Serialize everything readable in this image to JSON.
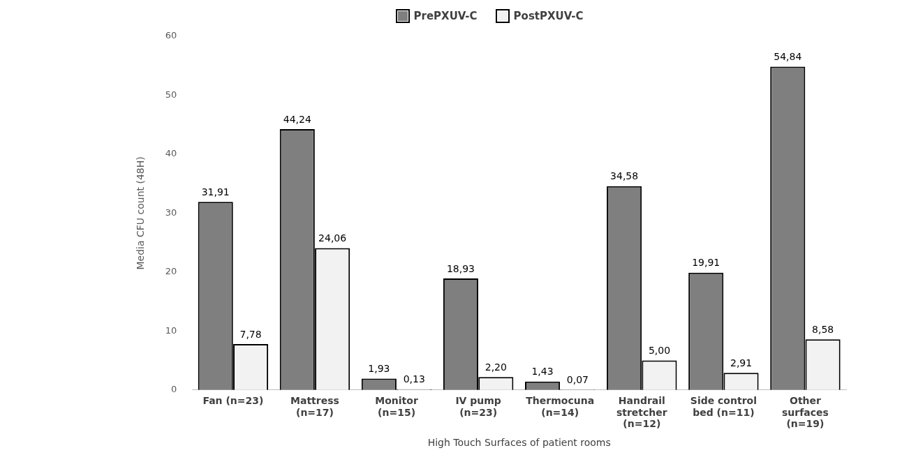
{
  "chart_data": {
    "type": "bar",
    "xlabel": "High Touch Surfaces of patient rooms",
    "ylabel": "Media CFU count (48H)",
    "categories": [
      "Fan (n=23)",
      "Mattress\n(n=17)",
      "Monitor\n(n=15)",
      "IV pump\n(n=23)",
      "Thermocuna\n(n=14)",
      "Handrail\nstretcher\n(n=12)",
      "Side control\nbed (n=11)",
      "Other\nsurfaces\n(n=19)"
    ],
    "series": [
      {
        "name": "PrePXUV-C",
        "color": "#7f7f7f",
        "values": [
          31.91,
          44.24,
          1.93,
          18.93,
          1.43,
          34.58,
          19.91,
          54.84
        ],
        "value_labels": [
          "31,91",
          "44,24",
          "1,93",
          "18,93",
          "1,43",
          "34,58",
          "19,91",
          "54,84"
        ]
      },
      {
        "name": "PostPXUV-C",
        "color": "#f2f2f2",
        "values": [
          7.78,
          24.06,
          0.13,
          2.2,
          0.07,
          5.0,
          2.91,
          8.58
        ],
        "value_labels": [
          "7,78",
          "24,06",
          "0,13",
          "2,20",
          "0,07",
          "5,00",
          "2,91",
          "8,58"
        ]
      }
    ],
    "ylim": [
      0,
      60
    ],
    "yticks": [
      0,
      10,
      20,
      30,
      40,
      50,
      60
    ],
    "grid": false,
    "legend": "top"
  }
}
